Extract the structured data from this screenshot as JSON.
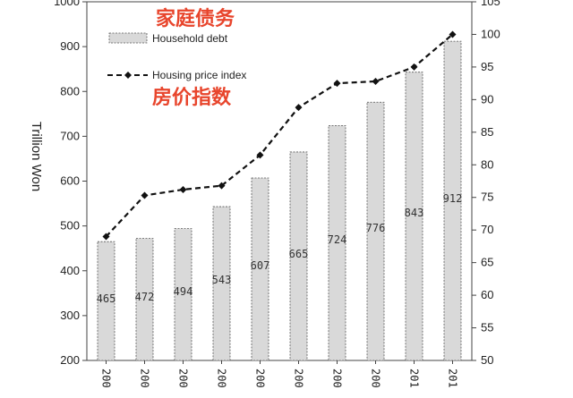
{
  "chart_data": {
    "type": "bar",
    "x_tick_labels": [
      "200",
      "200",
      "200",
      "200",
      "200",
      "200",
      "200",
      "200",
      "201",
      "201"
    ],
    "series": [
      {
        "name": "Household debt",
        "type": "bar",
        "axis": "left",
        "values": [
          465,
          472,
          494,
          543,
          607,
          665,
          724,
          776,
          843,
          912
        ],
        "labels": [
          "465",
          "472",
          "494",
          "543",
          "607",
          "665",
          "724",
          "776",
          "843",
          "912"
        ]
      },
      {
        "name": "Housing price index",
        "type": "line",
        "axis": "right",
        "values": [
          69.0,
          75.3,
          76.2,
          76.8,
          81.5,
          88.8,
          92.5,
          92.8,
          95.0,
          100.0
        ]
      }
    ],
    "ylabel": "Trillion Won",
    "ylim": [
      200,
      1000
    ],
    "yticks": [
      "200",
      "300",
      "400",
      "500",
      "600",
      "700",
      "800",
      "900",
      "1000"
    ],
    "y2lim": [
      50,
      105
    ],
    "y2ticks": [
      "50",
      "55",
      "60",
      "65",
      "70",
      "75",
      "80",
      "85",
      "90",
      "95",
      "100",
      "105"
    ],
    "annotations": {
      "debt_cn": "家庭债务",
      "index_cn": "房价指数"
    },
    "legend_position": "top-left",
    "colors": {
      "bar_fill": "#d9d9d9",
      "bar_stroke": "#555555",
      "line": "#111111",
      "annotation": "#e8452c"
    }
  }
}
